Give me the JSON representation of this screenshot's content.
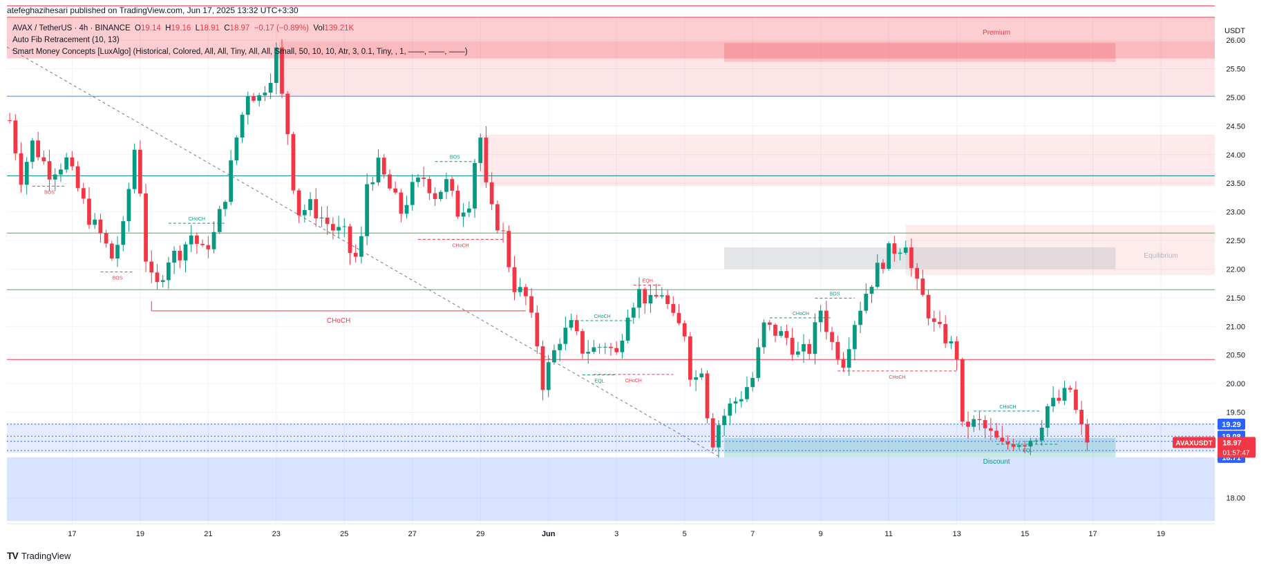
{
  "publisher_line": "atefeghazihesari published on TradingView.com, Jun 17, 2025 13:32 UTC+3:30",
  "legend": {
    "symbol": "AVAX / TetherUS · 4h · BINANCE",
    "o_label": "O",
    "o_value": "19.14",
    "h_label": "H",
    "h_value": "19.16",
    "l_label": "L",
    "l_value": "18.91",
    "c_label": "C",
    "c_value": "18.97",
    "change": "−0.17 (−0.89%)",
    "vol_label": "Vol",
    "vol_value": "139.21K",
    "indicator_1": "Auto Fib Retracement (10, 13)",
    "indicator_2": "Smart Money Concepts [LuxAlgo] (Historical, Colored, All, All, Tiny, All, All, Small, 50, 10, 10, Atr, 3, 0.1, Tiny, , 1, ——, ——, ——)"
  },
  "brand": {
    "name": "TradingView",
    "logo": "TV"
  },
  "colors": {
    "up": "#089981",
    "down": "#f23645",
    "bos": "#089981",
    "choch": "#f23645",
    "fib_blue": "#2962ff",
    "grid": "#f0f3fa"
  },
  "chart_data": {
    "type": "candlestick",
    "title": "AVAX / TetherUS · 4h · BINANCE",
    "currency": "USDT",
    "y_axis_side": "right",
    "ylim": [
      17.55,
      26.4
    ],
    "y_ticks": [
      "18.00",
      "19.50",
      "20.00",
      "20.50",
      "21.00",
      "21.50",
      "22.00",
      "22.50",
      "23.00",
      "23.50",
      "24.00",
      "24.50",
      "25.00",
      "25.50",
      "26.00"
    ],
    "x_ticks": [
      {
        "label": "17",
        "x": 0
      },
      {
        "label": "19",
        "x": 12
      },
      {
        "label": "21",
        "x": 24
      },
      {
        "label": "23",
        "x": 36
      },
      {
        "label": "25",
        "x": 48
      },
      {
        "label": "27",
        "x": 60
      },
      {
        "label": "29",
        "x": 72
      },
      {
        "label": "Jun",
        "x": 84
      },
      {
        "label": "3",
        "x": 96
      },
      {
        "label": "5",
        "x": 108
      },
      {
        "label": "7",
        "x": 120
      },
      {
        "label": "9",
        "x": 132
      },
      {
        "label": "11",
        "x": 144
      },
      {
        "label": "13",
        "x": 156
      },
      {
        "label": "15",
        "x": 168
      },
      {
        "label": "17",
        "x": 180
      },
      {
        "label": "19",
        "x": 192
      }
    ],
    "x_range": [
      -11.5,
      201.5
    ],
    "anchors": [
      [
        -11,
        24.6
      ],
      [
        -9,
        23.6
      ],
      [
        -7,
        24.2
      ],
      [
        -4,
        23.7
      ],
      [
        -1,
        23.9
      ],
      [
        1,
        23.4
      ],
      [
        3,
        22.9
      ],
      [
        5,
        22.6
      ],
      [
        7,
        22.2
      ],
      [
        9,
        22.7
      ],
      [
        11,
        24.1
      ],
      [
        12,
        23.4
      ],
      [
        13,
        22.2
      ],
      [
        14,
        21.8
      ],
      [
        15,
        21.7
      ],
      [
        17,
        22.2
      ],
      [
        19,
        22.3
      ],
      [
        21,
        22.6
      ],
      [
        23,
        22.3
      ],
      [
        25,
        22.6
      ],
      [
        27,
        23.3
      ],
      [
        29,
        24.3
      ],
      [
        31,
        25.1
      ],
      [
        33,
        25.0
      ],
      [
        35,
        25.4
      ],
      [
        36,
        25.8
      ],
      [
        37,
        25.0
      ],
      [
        38,
        24.4
      ],
      [
        39,
        23.5
      ],
      [
        40,
        23.0
      ],
      [
        42,
        23.1
      ],
      [
        44,
        22.9
      ],
      [
        46,
        22.7
      ],
      [
        48,
        22.6
      ],
      [
        49,
        22.3
      ],
      [
        50,
        22.2
      ],
      [
        51,
        22.5
      ],
      [
        52,
        23.5
      ],
      [
        54,
        23.8
      ],
      [
        56,
        23.4
      ],
      [
        58,
        23.0
      ],
      [
        60,
        23.4
      ],
      [
        62,
        23.6
      ],
      [
        64,
        23.3
      ],
      [
        66,
        23.5
      ],
      [
        68,
        23.0
      ],
      [
        70,
        23.2
      ],
      [
        71,
        23.9
      ],
      [
        72,
        24.3
      ],
      [
        73,
        23.4
      ],
      [
        74,
        23.0
      ],
      [
        76,
        22.6
      ],
      [
        77,
        22.1
      ],
      [
        78,
        21.7
      ],
      [
        80,
        21.5
      ],
      [
        81,
        21.1
      ],
      [
        82,
        20.7
      ],
      [
        83,
        20.0
      ],
      [
        84,
        20.3
      ],
      [
        86,
        20.8
      ],
      [
        88,
        21.0
      ],
      [
        90,
        20.6
      ],
      [
        92,
        20.6
      ],
      [
        94,
        20.7
      ],
      [
        96,
        20.5
      ],
      [
        98,
        21.3
      ],
      [
        100,
        21.6
      ],
      [
        102,
        21.4
      ],
      [
        104,
        21.6
      ],
      [
        106,
        21.1
      ],
      [
        108,
        20.9
      ],
      [
        109,
        20.2
      ],
      [
        110,
        20.1
      ],
      [
        111,
        20.3
      ],
      [
        112,
        19.5
      ],
      [
        113,
        19.0
      ],
      [
        114,
        19.3
      ],
      [
        116,
        19.6
      ],
      [
        118,
        19.8
      ],
      [
        120,
        20.1
      ],
      [
        122,
        21.0
      ],
      [
        124,
        20.9
      ],
      [
        126,
        20.8
      ],
      [
        128,
        20.5
      ],
      [
        130,
        20.6
      ],
      [
        132,
        21.3
      ],
      [
        134,
        20.7
      ],
      [
        136,
        20.4
      ],
      [
        138,
        21.1
      ],
      [
        140,
        21.6
      ],
      [
        142,
        22.0
      ],
      [
        144,
        22.3
      ],
      [
        146,
        22.4
      ],
      [
        147,
        22.5
      ],
      [
        148,
        22.0
      ],
      [
        149,
        21.7
      ],
      [
        150,
        21.5
      ],
      [
        152,
        21.0
      ],
      [
        154,
        20.8
      ],
      [
        156,
        20.5
      ],
      [
        157,
        19.2
      ],
      [
        158,
        19.3
      ],
      [
        160,
        19.3
      ],
      [
        162,
        19.1
      ],
      [
        164,
        18.9
      ],
      [
        166,
        19.0
      ],
      [
        168,
        19.0
      ],
      [
        170,
        19.1
      ],
      [
        172,
        19.6
      ],
      [
        174,
        19.7
      ],
      [
        176,
        19.9
      ],
      [
        177,
        19.5
      ],
      [
        178,
        19.2
      ],
      [
        179,
        18.97
      ]
    ],
    "fib_levels": [
      {
        "price": 26.6,
        "color": "#f23645"
      },
      {
        "price": 25.02,
        "color": "#2196f3"
      },
      {
        "price": 23.63,
        "color": "#00897b"
      },
      {
        "price": 22.63,
        "color": "#4caf50"
      },
      {
        "price": 21.64,
        "color": "#4caf50"
      },
      {
        "price": 20.42,
        "color": "#f23645"
      }
    ],
    "zones": [
      {
        "name": "premium-zone",
        "x0": -11.5,
        "x1": 201.5,
        "p0": 25.68,
        "p1": 26.4,
        "fill": "rgba(242,54,69,0.10)"
      },
      {
        "name": "supply-zone-1",
        "x0": 36.5,
        "x1": 201.5,
        "p0": 25.02,
        "p1": 25.98,
        "fill": "rgba(242,54,69,0.13)"
      },
      {
        "name": "supply-zone-inner",
        "x0": 115,
        "x1": 184,
        "p0": 25.62,
        "p1": 25.95,
        "fill": "rgba(242,54,69,0.22)"
      },
      {
        "name": "supply-zone-2",
        "x0": 72,
        "x1": 201.5,
        "p0": 23.45,
        "p1": 24.35,
        "fill": "rgba(242,54,69,0.11)"
      },
      {
        "name": "supply-zone-3",
        "x0": 147,
        "x1": 201.5,
        "p0": 21.9,
        "p1": 22.77,
        "fill": "rgba(242,54,69,0.10)"
      },
      {
        "name": "equilibrium-zone",
        "x0": 115,
        "x1": 184,
        "p0": 22.0,
        "p1": 22.38,
        "fill": "rgba(178,181,190,0.35)"
      },
      {
        "name": "discount-zone",
        "x0": -11.5,
        "x1": 201.5,
        "p0": 17.6,
        "p1": 18.71,
        "fill": "rgba(41,98,255,0.18)"
      },
      {
        "name": "demand-zone",
        "x0": 115,
        "x1": 184,
        "p0": 18.71,
        "p1": 19.05,
        "fill": "rgba(8,153,129,0.22)"
      },
      {
        "name": "fib-box",
        "x0": -11.5,
        "x1": 201.5,
        "p0": 18.79,
        "p1": 19.31,
        "fill": "rgba(41,98,255,0.12)"
      }
    ],
    "fib_box_lines": [
      19.29,
      19.08,
      18.99,
      18.83
    ],
    "structures": [
      {
        "label": "BOS",
        "x0": -7,
        "x1": -1,
        "price": 23.45,
        "color": "#f23645",
        "below": true
      },
      {
        "label": "BOS",
        "x0": 5,
        "x1": 11,
        "price": 21.95,
        "color": "#f23645",
        "below": true
      },
      {
        "label": "CHoCH",
        "x0": 17,
        "x1": 27,
        "price": 22.8,
        "color": "#089981",
        "below": false
      },
      {
        "label": "CHoCH",
        "x0": 14,
        "x1": 80,
        "price": 21.27,
        "color": "#f23645",
        "below": true,
        "solid": true
      },
      {
        "label": "BOS",
        "x0": 64,
        "x1": 71,
        "price": 23.88,
        "color": "#089981",
        "below": false
      },
      {
        "label": "CHoCH",
        "x0": 61,
        "x1": 76,
        "price": 22.52,
        "color": "#f23645",
        "below": true
      },
      {
        "label": "CHoCH",
        "x0": 88,
        "x1": 99,
        "price": 21.1,
        "color": "#089981",
        "below": false
      },
      {
        "label": "EQH",
        "x0": 99,
        "x1": 104,
        "price": 21.72,
        "color": "#f23645",
        "below": false
      },
      {
        "label": "EQL",
        "x0": 90,
        "x1": 96,
        "price": 20.15,
        "color": "#089981",
        "below": true
      },
      {
        "label": "CHoCH",
        "x0": 92,
        "x1": 106,
        "price": 20.16,
        "color": "#f23645",
        "below": true
      },
      {
        "label": "CHoCH",
        "x0": 123,
        "x1": 134,
        "price": 21.15,
        "color": "#089981",
        "below": false
      },
      {
        "label": "BOS",
        "x0": 131,
        "x1": 138,
        "price": 21.49,
        "color": "#089981",
        "below": false
      },
      {
        "label": "CHoCH",
        "x0": 135,
        "x1": 156,
        "price": 20.22,
        "color": "#f23645",
        "below": true
      },
      {
        "label": "CHoCH",
        "x0": 159,
        "x1": 171,
        "price": 19.52,
        "color": "#089981",
        "below": false
      },
      {
        "label": "EQL",
        "x0": 163,
        "x1": 174,
        "price": 18.94,
        "color": "#089981",
        "below": true
      }
    ],
    "zone_labels": [
      {
        "text": "Premium",
        "x": 163,
        "price": 26.1,
        "color": "#f23645"
      },
      {
        "text": "Equilibrium",
        "x": 192,
        "price": 22.2,
        "color": "#b2b5be"
      },
      {
        "text": "Discount",
        "x": 163,
        "price": 18.6,
        "color": "#089981"
      }
    ],
    "trendline": {
      "x0": -11.5,
      "p0": 25.88,
      "x1": 114,
      "p1": 18.73
    },
    "price_labels": [
      {
        "text": "19.29",
        "price": 19.29,
        "color": "#2962ff"
      },
      {
        "text": "19.08",
        "price": 19.08,
        "color": "#2962ff"
      },
      {
        "text": "18.83",
        "price": 18.83,
        "color": "#2962ff"
      },
      {
        "text": "18.71",
        "price": 18.71,
        "color": "#2962ff"
      }
    ],
    "last_price": {
      "symbol": "AVAXUSDT",
      "value": "18.97",
      "countdown": "01:57:47",
      "price": 18.97
    }
  }
}
